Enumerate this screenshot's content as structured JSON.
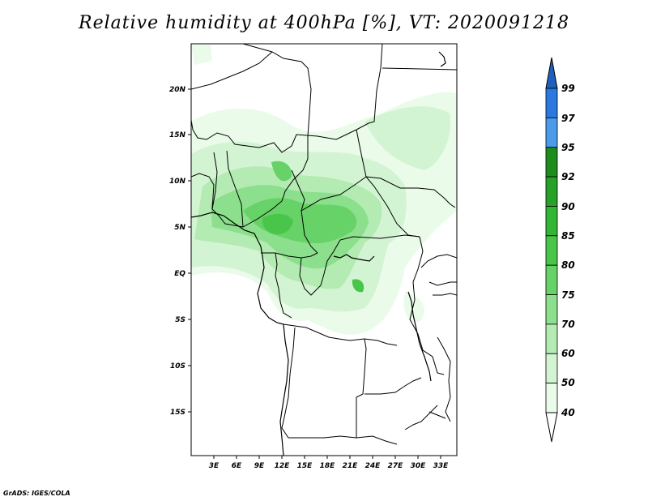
{
  "title": "Relative humidity at 400hPa [%], VT: 2020091218",
  "credit": "GrADS: IGES/COLA",
  "map": {
    "lon_labels": [
      "3E",
      "6E",
      "9E",
      "12E",
      "15E",
      "18E",
      "21E",
      "24E",
      "27E",
      "30E",
      "33E"
    ],
    "lat_labels": [
      "20N",
      "15N",
      "10N",
      "5N",
      "EQ",
      "5S",
      "10S",
      "15S"
    ]
  },
  "colorbar": {
    "labels": [
      "99",
      "97",
      "95",
      "92",
      "90",
      "85",
      "80",
      "75",
      "70",
      "60",
      "50",
      "40"
    ],
    "colors": [
      "#1f5fbf",
      "#2a78e0",
      "#4a9be8",
      "#1d8c1d",
      "#27a127",
      "#33b633",
      "#49c649",
      "#67d267",
      "#8cdf8c",
      "#b3ebb3",
      "#d3f4d3",
      "#eafbea"
    ]
  }
}
